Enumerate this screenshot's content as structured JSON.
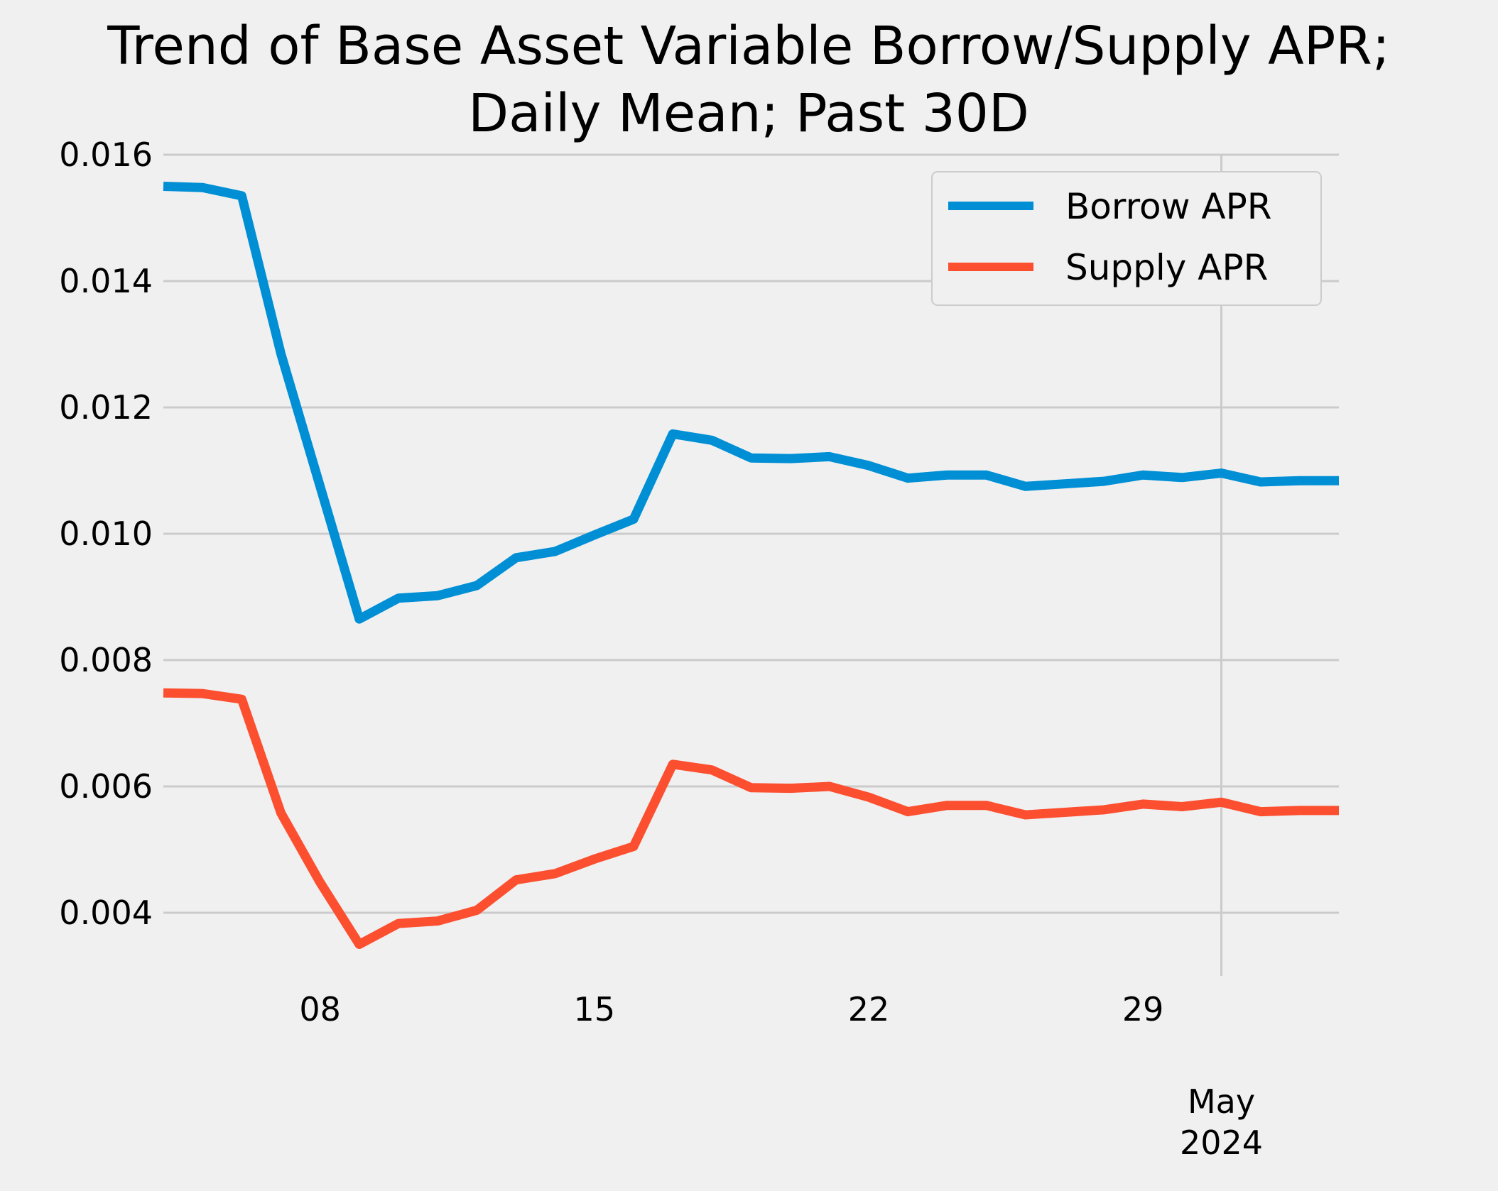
{
  "chart_data": {
    "type": "line",
    "title_lines": [
      "Trend of Base Asset Variable Borrow/Supply APR;",
      "Daily Mean; Past 30D"
    ],
    "xlabel": "",
    "ylabel": "",
    "x": [
      "2024-04-04",
      "2024-04-05",
      "2024-04-06",
      "2024-04-07",
      "2024-04-08",
      "2024-04-09",
      "2024-04-10",
      "2024-04-11",
      "2024-04-12",
      "2024-04-13",
      "2024-04-14",
      "2024-04-15",
      "2024-04-16",
      "2024-04-17",
      "2024-04-18",
      "2024-04-19",
      "2024-04-20",
      "2024-04-21",
      "2024-04-22",
      "2024-04-23",
      "2024-04-24",
      "2024-04-25",
      "2024-04-26",
      "2024-04-27",
      "2024-04-28",
      "2024-04-29",
      "2024-04-30",
      "2024-05-01",
      "2024-05-02",
      "2024-05-03",
      "2024-05-04"
    ],
    "x_ticks": [
      {
        "date": "2024-04-08",
        "label": "08"
      },
      {
        "date": "2024-04-15",
        "label": "15"
      },
      {
        "date": "2024-04-22",
        "label": "22"
      },
      {
        "date": "2024-04-29",
        "label": "29"
      }
    ],
    "x_secondary_tick": {
      "date": "2024-05-01",
      "label_lines": [
        "May",
        "2024"
      ]
    },
    "xlim": [
      "2024-04-04",
      "2024-05-04"
    ],
    "ylim": [
      0.003,
      0.016
    ],
    "y_ticks": [
      0.004,
      0.006,
      0.008,
      0.01,
      0.012,
      0.014,
      0.016
    ],
    "y_tick_labels": [
      "0.004",
      "0.006",
      "0.008",
      "0.010",
      "0.012",
      "0.014",
      "0.016"
    ],
    "grid": true,
    "legend_position": "top-right",
    "series": [
      {
        "name": "Borrow APR",
        "color": "#008fd5",
        "values": [
          0.0155,
          0.01548,
          0.01535,
          0.01285,
          0.01075,
          0.00865,
          0.00898,
          0.00902,
          0.00918,
          0.00962,
          0.00972,
          0.00998,
          0.01023,
          0.01158,
          0.01148,
          0.0112,
          0.01119,
          0.01122,
          0.01108,
          0.01088,
          0.01093,
          0.01093,
          0.01075,
          0.01079,
          0.01083,
          0.01093,
          0.01089,
          0.01096,
          0.01082,
          0.01084,
          0.01084
        ]
      },
      {
        "name": "Supply APR",
        "color": "#fc4f30",
        "values": [
          0.00748,
          0.00747,
          0.00738,
          0.00558,
          0.00448,
          0.0035,
          0.00383,
          0.00387,
          0.00404,
          0.00452,
          0.00462,
          0.00485,
          0.00505,
          0.00635,
          0.00626,
          0.00598,
          0.00597,
          0.006,
          0.00583,
          0.0056,
          0.0057,
          0.0057,
          0.00555,
          0.00559,
          0.00563,
          0.00572,
          0.00568,
          0.00575,
          0.0056,
          0.00562,
          0.00562
        ]
      }
    ]
  }
}
